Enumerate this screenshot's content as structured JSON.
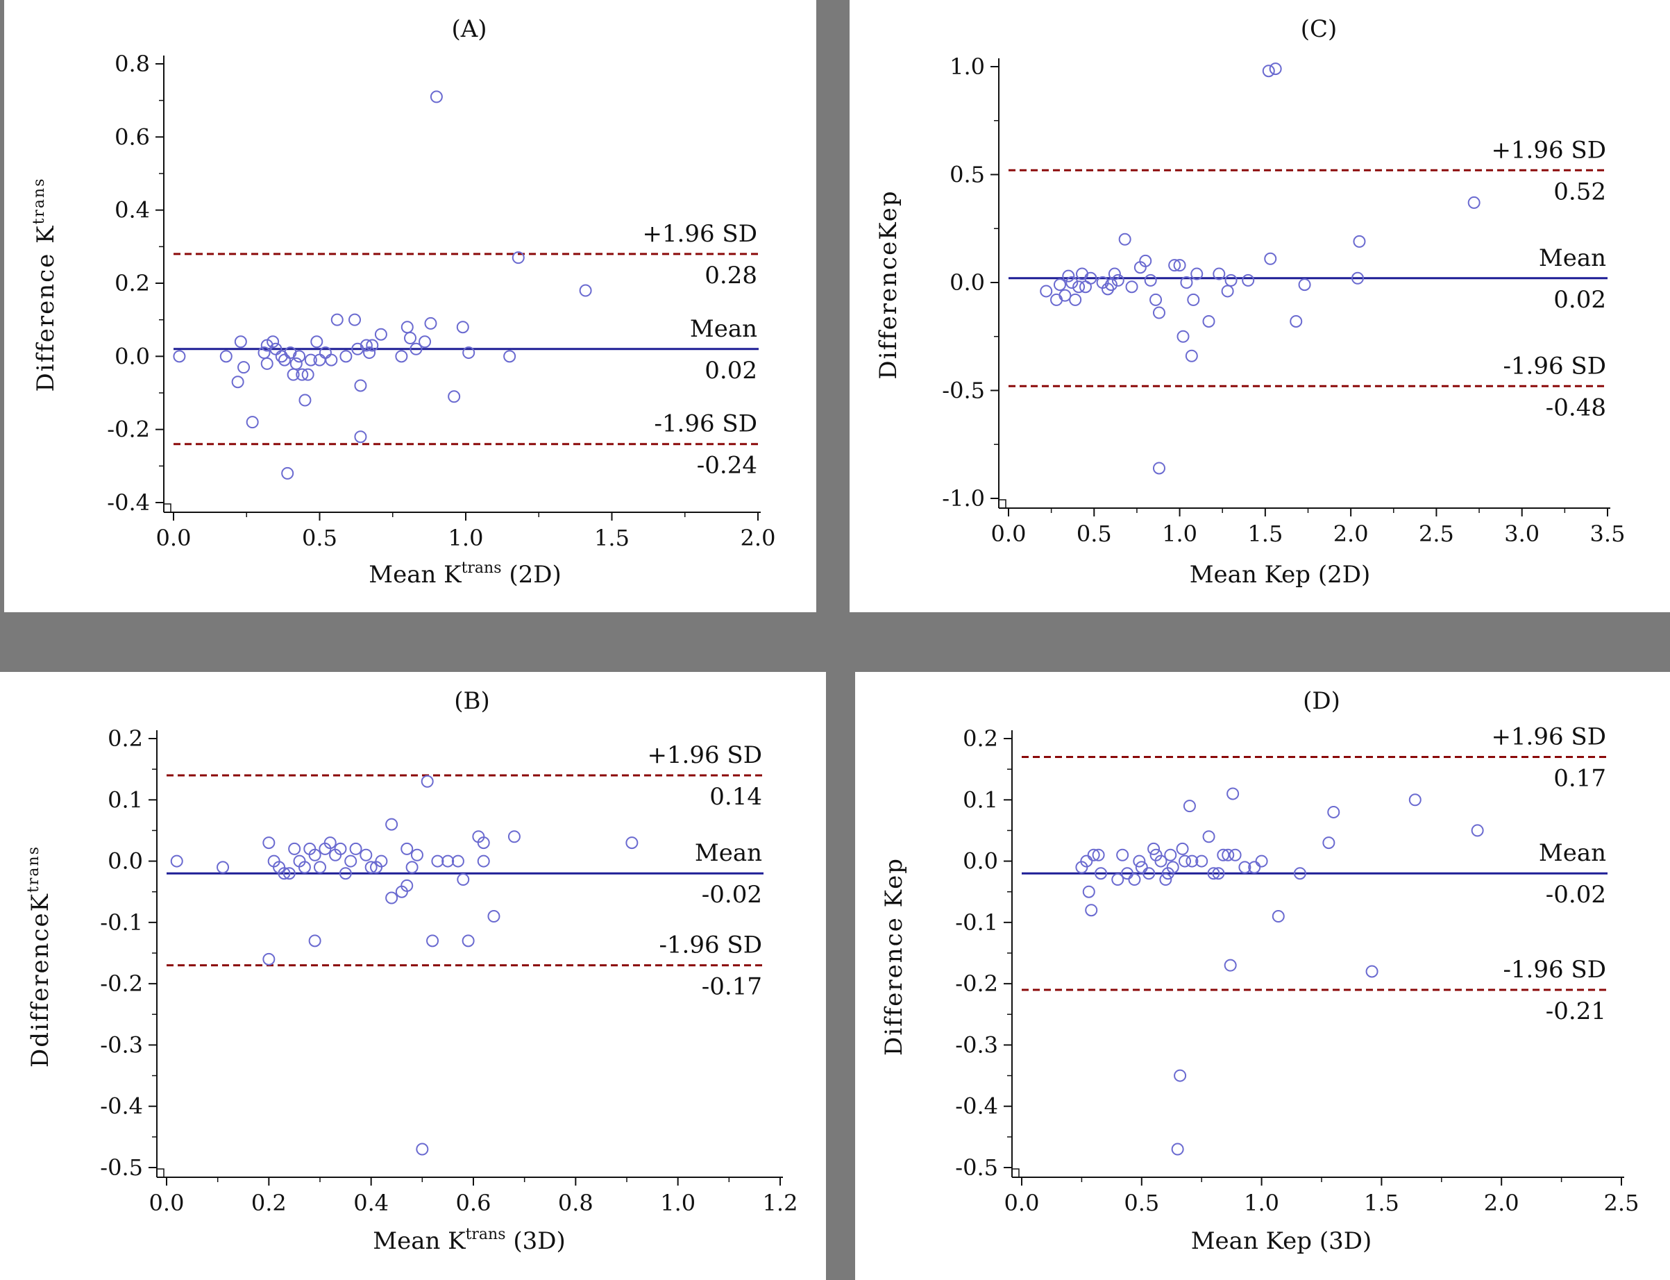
{
  "chart_data": [
    {
      "type": "scatter",
      "panel": "(A)",
      "title": "(A)",
      "xlabel": {
        "prefix": "Mean K",
        "sup": "trans",
        "suffix": " (2D)"
      },
      "ylabel": {
        "prefix": "Difference K",
        "sup": "trans",
        "suffix": ""
      },
      "xlim": [
        0.0,
        2.0
      ],
      "ylim": [
        -0.4,
        0.8
      ],
      "xticks": [
        "0.0",
        "0.5",
        "1.0",
        "1.5",
        "2.0"
      ],
      "yticks": [
        "-0.4",
        "-0.2",
        "0.0",
        "0.2",
        "0.4",
        "0.6",
        "0.8"
      ],
      "upper_loa": 0.28,
      "mean": 0.02,
      "lower_loa": -0.24,
      "upper_label": "+1.96 SD",
      "upper_value": "0.28",
      "mean_label": "Mean",
      "mean_value": "0.02",
      "lower_label": "-1.96 SD",
      "lower_value": "-0.24",
      "points": [
        [
          0.02,
          0.0
        ],
        [
          0.18,
          0.0
        ],
        [
          0.22,
          -0.07
        ],
        [
          0.23,
          0.04
        ],
        [
          0.24,
          -0.03
        ],
        [
          0.27,
          -0.18
        ],
        [
          0.31,
          0.01
        ],
        [
          0.32,
          -0.02
        ],
        [
          0.32,
          0.03
        ],
        [
          0.34,
          0.04
        ],
        [
          0.35,
          0.02
        ],
        [
          0.37,
          0.0
        ],
        [
          0.38,
          -0.01
        ],
        [
          0.39,
          -0.32
        ],
        [
          0.4,
          0.01
        ],
        [
          0.41,
          -0.05
        ],
        [
          0.42,
          -0.02
        ],
        [
          0.43,
          0.0
        ],
        [
          0.44,
          -0.05
        ],
        [
          0.45,
          -0.12
        ],
        [
          0.46,
          -0.05
        ],
        [
          0.47,
          -0.01
        ],
        [
          0.49,
          0.04
        ],
        [
          0.5,
          -0.01
        ],
        [
          0.52,
          0.01
        ],
        [
          0.54,
          -0.01
        ],
        [
          0.56,
          0.1
        ],
        [
          0.59,
          0.0
        ],
        [
          0.62,
          0.1
        ],
        [
          0.63,
          0.02
        ],
        [
          0.64,
          -0.08
        ],
        [
          0.64,
          -0.22
        ],
        [
          0.66,
          0.03
        ],
        [
          0.67,
          0.01
        ],
        [
          0.68,
          0.03
        ],
        [
          0.71,
          0.06
        ],
        [
          0.78,
          0.0
        ],
        [
          0.8,
          0.08
        ],
        [
          0.81,
          0.05
        ],
        [
          0.83,
          0.02
        ],
        [
          0.86,
          0.04
        ],
        [
          0.88,
          0.09
        ],
        [
          0.9,
          0.71
        ],
        [
          0.96,
          -0.11
        ],
        [
          0.99,
          0.08
        ],
        [
          1.01,
          0.01
        ],
        [
          1.15,
          0.0
        ],
        [
          1.18,
          0.27
        ],
        [
          1.41,
          0.18
        ]
      ]
    },
    {
      "type": "scatter",
      "panel": "(C)",
      "title": "(C)",
      "xlabel": {
        "prefix": "Mean Kep",
        "sup": "",
        "suffix": " (2D)"
      },
      "ylabel": {
        "prefix": "DifferenceKep",
        "sup": "",
        "suffix": ""
      },
      "xlim": [
        0.0,
        3.5
      ],
      "ylim": [
        -1.0,
        1.0
      ],
      "xticks": [
        "0.0",
        "0.5",
        "1.0",
        "1.5",
        "2.0",
        "2.5",
        "3.0",
        "3.5"
      ],
      "yticks": [
        "-1.0",
        "-0.5",
        "0.0",
        "0.5",
        "1.0"
      ],
      "upper_loa": 0.52,
      "mean": 0.02,
      "lower_loa": -0.48,
      "upper_label": "+1.96 SD",
      "upper_value": "0.52",
      "mean_label": "Mean",
      "mean_value": "0.02",
      "lower_label": "-1.96 SD",
      "lower_value": "-0.48",
      "points": [
        [
          0.22,
          -0.04
        ],
        [
          0.28,
          -0.08
        ],
        [
          0.3,
          -0.01
        ],
        [
          0.33,
          -0.06
        ],
        [
          0.35,
          0.03
        ],
        [
          0.37,
          0.0
        ],
        [
          0.39,
          -0.08
        ],
        [
          0.41,
          -0.02
        ],
        [
          0.43,
          0.04
        ],
        [
          0.45,
          -0.02
        ],
        [
          0.48,
          0.02
        ],
        [
          0.55,
          0.0
        ],
        [
          0.58,
          -0.03
        ],
        [
          0.6,
          -0.01
        ],
        [
          0.62,
          0.04
        ],
        [
          0.64,
          0.01
        ],
        [
          0.68,
          0.2
        ],
        [
          0.72,
          -0.02
        ],
        [
          0.77,
          0.07
        ],
        [
          0.8,
          0.1
        ],
        [
          0.83,
          0.01
        ],
        [
          0.86,
          -0.08
        ],
        [
          0.88,
          -0.86
        ],
        [
          0.88,
          -0.14
        ],
        [
          0.97,
          0.08
        ],
        [
          1.0,
          0.08
        ],
        [
          1.02,
          -0.25
        ],
        [
          1.04,
          0.0
        ],
        [
          1.07,
          -0.34
        ],
        [
          1.08,
          -0.08
        ],
        [
          1.1,
          0.04
        ],
        [
          1.17,
          -0.18
        ],
        [
          1.23,
          0.04
        ],
        [
          1.28,
          -0.04
        ],
        [
          1.3,
          0.01
        ],
        [
          1.4,
          0.01
        ],
        [
          1.52,
          0.98
        ],
        [
          1.53,
          0.11
        ],
        [
          1.56,
          0.99
        ],
        [
          1.68,
          -0.18
        ],
        [
          1.73,
          -0.01
        ],
        [
          2.04,
          0.02
        ],
        [
          2.05,
          0.19
        ],
        [
          2.72,
          0.37
        ]
      ]
    },
    {
      "type": "scatter",
      "panel": "(B)",
      "title": "(B)",
      "xlabel": {
        "prefix": "Mean K",
        "sup": "trans",
        "suffix": " (3D)"
      },
      "ylabel": {
        "prefix": "DdifferenceK",
        "sup": "trans",
        "suffix": ""
      },
      "xlim": [
        0.0,
        1.2
      ],
      "ylim": [
        -0.5,
        0.2
      ],
      "xticks": [
        "0.0",
        "0.2",
        "0.4",
        "0.6",
        "0.8",
        "1.0",
        "1.2"
      ],
      "yticks": [
        "-0.5",
        "-0.4",
        "-0.3",
        "-0.2",
        "-0.1",
        "0.0",
        "0.1",
        "0.2"
      ],
      "upper_loa": 0.14,
      "mean": -0.02,
      "lower_loa": -0.17,
      "upper_label": "+1.96 SD",
      "upper_value": "0.14",
      "mean_label": "Mean",
      "mean_value": "-0.02",
      "lower_label": "-1.96 SD",
      "lower_value": "-0.17",
      "points": [
        [
          0.02,
          0.0
        ],
        [
          0.11,
          -0.01
        ],
        [
          0.2,
          0.03
        ],
        [
          0.2,
          -0.16
        ],
        [
          0.21,
          0.0
        ],
        [
          0.22,
          -0.01
        ],
        [
          0.23,
          -0.02
        ],
        [
          0.24,
          -0.02
        ],
        [
          0.25,
          0.02
        ],
        [
          0.26,
          0.0
        ],
        [
          0.27,
          -0.01
        ],
        [
          0.28,
          0.02
        ],
        [
          0.29,
          0.01
        ],
        [
          0.29,
          -0.13
        ],
        [
          0.3,
          -0.01
        ],
        [
          0.31,
          0.02
        ],
        [
          0.32,
          0.03
        ],
        [
          0.33,
          0.01
        ],
        [
          0.34,
          0.02
        ],
        [
          0.35,
          -0.02
        ],
        [
          0.36,
          0.0
        ],
        [
          0.37,
          0.02
        ],
        [
          0.39,
          0.01
        ],
        [
          0.4,
          -0.01
        ],
        [
          0.41,
          -0.01
        ],
        [
          0.42,
          0.0
        ],
        [
          0.44,
          0.06
        ],
        [
          0.44,
          -0.06
        ],
        [
          0.46,
          -0.05
        ],
        [
          0.47,
          0.02
        ],
        [
          0.47,
          -0.04
        ],
        [
          0.48,
          -0.01
        ],
        [
          0.49,
          0.01
        ],
        [
          0.5,
          -0.47
        ],
        [
          0.51,
          0.13
        ],
        [
          0.52,
          -0.13
        ],
        [
          0.53,
          0.0
        ],
        [
          0.55,
          0.0
        ],
        [
          0.57,
          0.0
        ],
        [
          0.58,
          -0.03
        ],
        [
          0.59,
          -0.13
        ],
        [
          0.61,
          0.04
        ],
        [
          0.62,
          0.03
        ],
        [
          0.62,
          0.0
        ],
        [
          0.64,
          -0.09
        ],
        [
          0.68,
          0.04
        ],
        [
          0.91,
          0.03
        ]
      ]
    },
    {
      "type": "scatter",
      "panel": "(D)",
      "title": "(D)",
      "xlabel": {
        "prefix": "Mean Kep",
        "sup": "",
        "suffix": " (3D)"
      },
      "ylabel": {
        "prefix": "Difference Kep",
        "sup": "",
        "suffix": ""
      },
      "xlim": [
        0.0,
        2.5
      ],
      "ylim": [
        -0.5,
        0.2
      ],
      "xticks": [
        "0.0",
        "0.5",
        "1.0",
        "1.5",
        "2.0",
        "2.5"
      ],
      "yticks": [
        "-0.5",
        "-0.4",
        "-0.3",
        "-0.2",
        "-0.1",
        "0.0",
        "0.1",
        "0.2"
      ],
      "upper_loa": 0.17,
      "mean": -0.02,
      "lower_loa": -0.21,
      "upper_label": "+1.96 SD",
      "upper_value": "0.17",
      "mean_label": "Mean",
      "mean_value": "-0.02",
      "lower_label": "-1.96 SD",
      "lower_value": "-0.21",
      "points": [
        [
          0.25,
          -0.01
        ],
        [
          0.27,
          0.0
        ],
        [
          0.28,
          -0.05
        ],
        [
          0.29,
          -0.08
        ],
        [
          0.3,
          0.01
        ],
        [
          0.32,
          0.01
        ],
        [
          0.33,
          -0.02
        ],
        [
          0.4,
          -0.03
        ],
        [
          0.42,
          0.01
        ],
        [
          0.44,
          -0.02
        ],
        [
          0.47,
          -0.03
        ],
        [
          0.49,
          0.0
        ],
        [
          0.5,
          -0.01
        ],
        [
          0.53,
          -0.02
        ],
        [
          0.55,
          0.02
        ],
        [
          0.56,
          0.01
        ],
        [
          0.58,
          0.0
        ],
        [
          0.6,
          -0.03
        ],
        [
          0.61,
          -0.02
        ],
        [
          0.62,
          0.01
        ],
        [
          0.63,
          -0.01
        ],
        [
          0.65,
          -0.47
        ],
        [
          0.66,
          -0.35
        ],
        [
          0.67,
          0.02
        ],
        [
          0.68,
          0.0
        ],
        [
          0.7,
          0.09
        ],
        [
          0.71,
          0.0
        ],
        [
          0.75,
          0.0
        ],
        [
          0.78,
          0.04
        ],
        [
          0.8,
          -0.02
        ],
        [
          0.82,
          -0.02
        ],
        [
          0.84,
          0.01
        ],
        [
          0.86,
          0.01
        ],
        [
          0.87,
          -0.17
        ],
        [
          0.88,
          0.11
        ],
        [
          0.89,
          0.01
        ],
        [
          0.93,
          -0.01
        ],
        [
          0.97,
          -0.01
        ],
        [
          1.0,
          0.0
        ],
        [
          1.07,
          -0.09
        ],
        [
          1.16,
          -0.02
        ],
        [
          1.28,
          0.03
        ],
        [
          1.3,
          0.08
        ],
        [
          1.46,
          -0.18
        ],
        [
          1.64,
          0.1
        ],
        [
          1.9,
          0.05
        ]
      ]
    }
  ],
  "colors": {
    "point": "#6a6ad0",
    "mean_line": "#1e1e96",
    "loa_line": "#8b0a0a",
    "axis": "#111111",
    "frame": "#7a7a7a"
  }
}
